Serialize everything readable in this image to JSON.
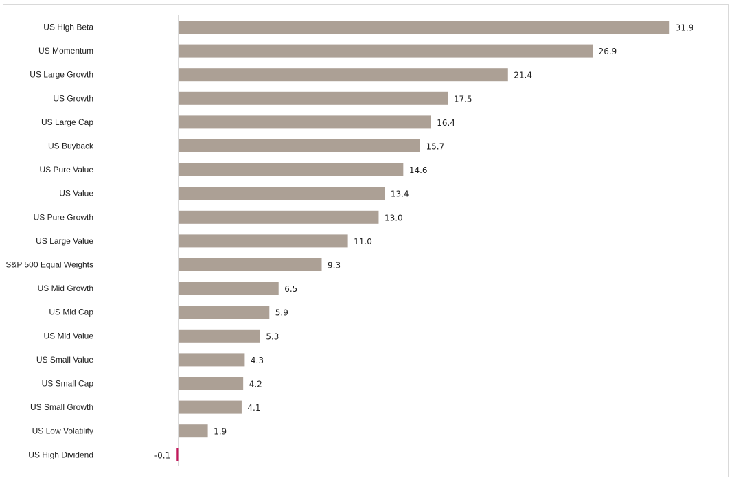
{
  "chart_data": {
    "type": "bar",
    "orientation": "horizontal",
    "categories": [
      "US High Beta",
      "US Momentum",
      "US Large Growth",
      "US Growth",
      "US Large Cap",
      "US Buyback",
      "US Pure Value",
      "US Value",
      "US Pure Growth",
      "US Large Value",
      "S&P 500 Equal Weights",
      "US Mid Growth",
      "US Mid Cap",
      "US Mid Value",
      "US Small Value",
      "US Small Cap",
      "US Small Growth",
      "US Low Volatility",
      "US High Dividend"
    ],
    "values": [
      31.9,
      26.9,
      21.4,
      17.5,
      16.4,
      15.7,
      14.6,
      13.4,
      13.0,
      11.0,
      9.3,
      6.5,
      5.9,
      5.3,
      4.3,
      4.2,
      4.1,
      1.9,
      -0.1
    ],
    "value_labels": [
      "31.9",
      "26.9",
      "21.4",
      "17.5",
      "16.4",
      "15.7",
      "14.6",
      "13.4",
      "13.0",
      "11.0",
      "9.3",
      "6.5",
      "5.9",
      "5.3",
      "4.3",
      "4.2",
      "4.1",
      "1.9",
      "-0.1"
    ],
    "title": "",
    "xlabel": "",
    "ylabel": "",
    "grid": false,
    "legend": "none",
    "colors": {
      "positive_bar": "#aca095",
      "negative_bar": "#c2185b",
      "axis": "#d9d9d9",
      "frame": "#d9d9d9",
      "text": "#1f1f1f"
    }
  }
}
